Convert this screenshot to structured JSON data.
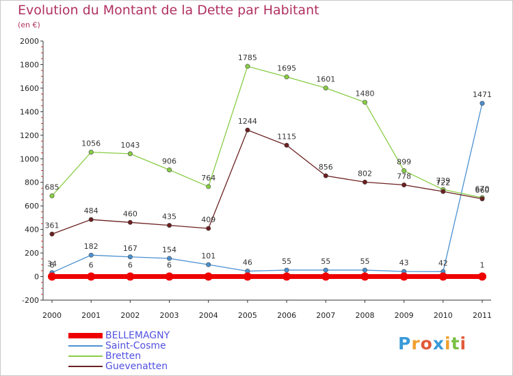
{
  "header": {
    "title": "Evolution du Montant de la Dette par Habitant",
    "subtitle": "(en €)"
  },
  "brand": {
    "logo_text": "Proxiti",
    "letters": [
      {
        "ch": "P",
        "color": "#3a9ad9"
      },
      {
        "ch": "r",
        "color": "#f0a030"
      },
      {
        "ch": "o",
        "color": "#e05a3a"
      },
      {
        "ch": "x",
        "color": "#3a9ad9"
      },
      {
        "ch": "i",
        "color": "#f0a030"
      },
      {
        "ch": "t",
        "color": "#7ac043"
      },
      {
        "ch": "i",
        "color": "#e05a3a"
      }
    ]
  },
  "chart_data": {
    "type": "line",
    "title": "Evolution du Montant de la Dette par Habitant",
    "subtitle": "(en €)",
    "x": [
      "2000",
      "2001",
      "2002",
      "2003",
      "2004",
      "2005",
      "2006",
      "2007",
      "2008",
      "2009",
      "2010",
      "2011"
    ],
    "ylim": [
      -200,
      2000
    ],
    "yticks": [
      -200,
      0,
      200,
      400,
      600,
      800,
      1000,
      1200,
      1400,
      1600,
      1800,
      2000
    ],
    "grid": false,
    "legend_position": "bottom-left",
    "series": [
      {
        "name": "BELLEMAGNY",
        "color": "#ee0000",
        "width": 7,
        "values": [
          0,
          0,
          0,
          0,
          0,
          0,
          0,
          0,
          0,
          0,
          0,
          0
        ],
        "labels": false
      },
      {
        "name": "Saint-Cosme",
        "color": "#4a90d0",
        "width": 1.3,
        "values": [
          34,
          182,
          167,
          154,
          101,
          46,
          55,
          55,
          55,
          43,
          42,
          1471
        ]
      },
      {
        "name": "Bretten",
        "color": "#88cc44",
        "width": 1.3,
        "values": [
          685,
          1056,
          1043,
          906,
          764,
          1785,
          1695,
          1601,
          1480,
          899,
          739,
          670
        ]
      },
      {
        "name": "Guevenatten",
        "color": "#6b1f1f",
        "width": 1.3,
        "values": [
          361,
          484,
          460,
          435,
          409,
          1244,
          1115,
          856,
          802,
          778,
          722,
          660
        ]
      }
    ],
    "extra_labels": [
      {
        "text": "6",
        "x_index": 0
      },
      {
        "text": "6",
        "x_index": 1
      },
      {
        "text": "6",
        "x_index": 2
      },
      {
        "text": "6",
        "x_index": 3
      },
      {
        "text": "1",
        "x_index": 11
      }
    ]
  }
}
